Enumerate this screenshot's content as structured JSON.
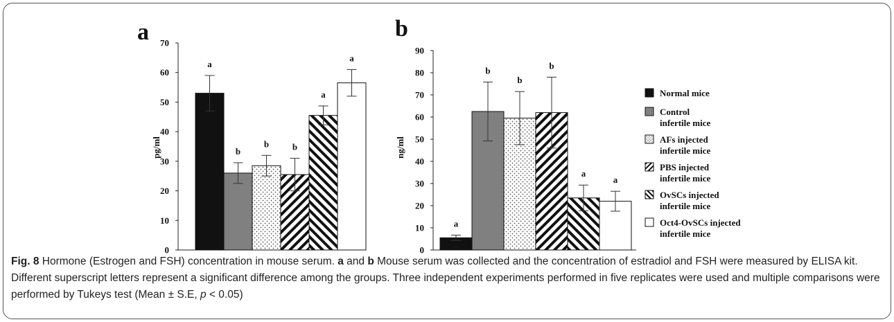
{
  "chart_data": [
    {
      "type": "bar",
      "panel_label": "a",
      "ylabel": "pg/ml",
      "xlabel": "",
      "ylim": [
        0,
        70
      ],
      "yticks": [
        0,
        10,
        20,
        30,
        40,
        50,
        60,
        70
      ],
      "categories": [
        "Normal mice",
        "Control infertile mice",
        "AFs injected infertile mice",
        "PBS injected infertile mice",
        "OvSCs injected infertile mice",
        "Oct4-OvSCs injected infertile mice"
      ],
      "values": [
        53,
        26,
        28.5,
        25.5,
        45.5,
        56.5
      ],
      "errors": [
        6,
        3.5,
        3.5,
        5.5,
        3.2,
        4.5
      ],
      "letters": [
        "a",
        "b",
        "b",
        "b",
        "a",
        "a"
      ]
    },
    {
      "type": "bar",
      "panel_label": "b",
      "ylabel": "ng/ml",
      "xlabel": "",
      "ylim": [
        0,
        90
      ],
      "yticks": [
        0,
        10,
        20,
        30,
        40,
        50,
        60,
        70,
        80,
        90
      ],
      "categories": [
        "Normal mice",
        "Control infertile mice",
        "AFs injected infertile mice",
        "PBS injected infertile mice",
        "OvSCs injected infertile mice",
        "Oct4-OvSCs injected infertile mice"
      ],
      "values": [
        5.5,
        62.5,
        59.5,
        62,
        23.5,
        22
      ],
      "errors": [
        1.2,
        13.3,
        12,
        16,
        5.8,
        4.5
      ],
      "letters": [
        "a",
        "b",
        "b",
        "b",
        "a",
        "a"
      ]
    }
  ],
  "legend": {
    "entries": [
      {
        "line1": "Normal mice",
        "line2": "",
        "pattern": "solid-black"
      },
      {
        "line1": "Control",
        "line2": "infertile mice",
        "pattern": "solid-gray"
      },
      {
        "line1": "AFs injected",
        "line2": "infertile mice",
        "pattern": "dots"
      },
      {
        "line1": "PBS injected",
        "line2": "infertile mice",
        "pattern": "diag-down"
      },
      {
        "line1": "OvSCs injected",
        "line2": "infertile mice",
        "pattern": "diag-up"
      },
      {
        "line1": "Oct4-OvSCs injected",
        "line2": "infertile mice",
        "pattern": "white"
      }
    ]
  },
  "caption": {
    "fig_label": "Fig. 8",
    "title": " Hormone (Estrogen and FSH) concentration in mouse serum. ",
    "a_label": "a",
    "and": " and ",
    "b_label": "b",
    "body": " Mouse serum was collected and the concentration of estradiol and FSH were measured by ELISA kit. Different superscript letters represent a significant difference among the groups. Three independent experiments performed in five replicates were used and multiple comparisons were performed by Tukeys test (Mean ± S.E, ",
    "p_symbol": "p",
    "tail": " < 0.05)"
  },
  "colors": {
    "black": "#111111",
    "gray": "#808080",
    "caption_text": "#222222"
  }
}
